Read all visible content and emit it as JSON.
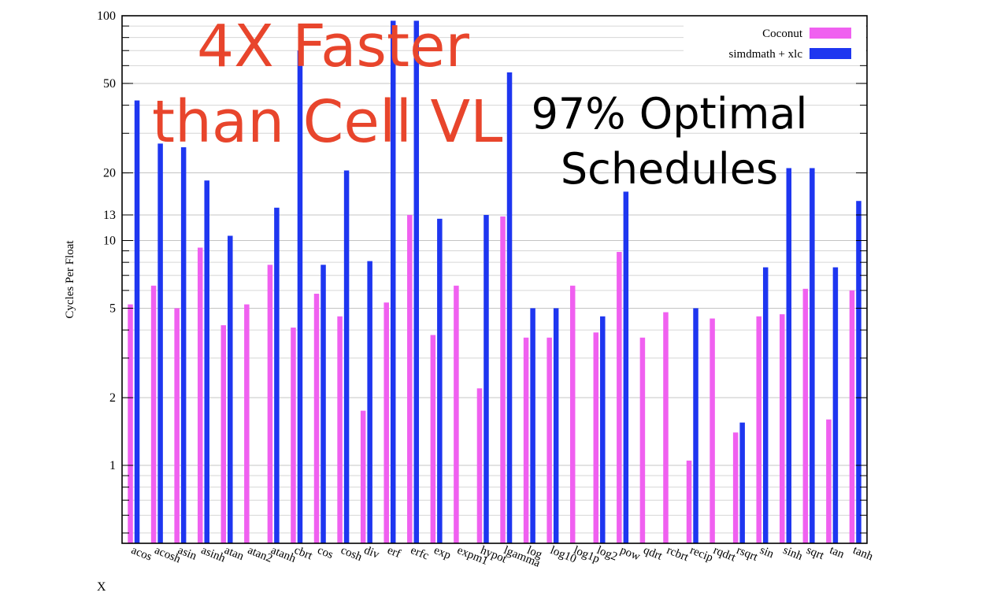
{
  "chart_data": {
    "type": "bar",
    "ylabel": "Cycles Per Float",
    "xlabel": "X",
    "yscale": "log",
    "ylim": [
      0.45,
      100
    ],
    "yticks": [
      1,
      2,
      5,
      10,
      13,
      20,
      50,
      100
    ],
    "grid": true,
    "legend_position": "top-right",
    "categories": [
      "acos",
      "acosh",
      "asin",
      "asinh",
      "atan",
      "atan2",
      "atanh",
      "cbrt",
      "cos",
      "cosh",
      "div",
      "erf",
      "erfc",
      "exp",
      "expm1",
      "hypot",
      "lgamma",
      "log",
      "log10",
      "log1p",
      "log2",
      "pow",
      "qdrt",
      "rcbrt",
      "recip",
      "rqdrt",
      "rsqrt",
      "sin",
      "sinh",
      "sqrt",
      "tan",
      "tanh"
    ],
    "series": [
      {
        "name": "Coconut",
        "color": "#f060f0",
        "values": [
          5.2,
          6.3,
          5.0,
          9.3,
          4.2,
          5.2,
          7.8,
          4.1,
          5.8,
          4.6,
          1.75,
          5.3,
          13,
          3.8,
          6.3,
          2.2,
          12.8,
          3.7,
          3.7,
          6.3,
          3.9,
          8.9,
          3.7,
          4.8,
          1.05,
          4.5,
          1.4,
          4.6,
          4.7,
          6.1,
          1.6,
          6.0
        ]
      },
      {
        "name": "simdmath + xlc",
        "color": "#1e36f0",
        "values": [
          42,
          27,
          26,
          18.5,
          10.5,
          null,
          14,
          70,
          7.8,
          20.5,
          8.1,
          95,
          95,
          12.5,
          null,
          13,
          56,
          5.0,
          5.0,
          null,
          4.6,
          16.5,
          null,
          null,
          5.0,
          null,
          1.55,
          7.6,
          21,
          21,
          7.6,
          15
        ]
      }
    ]
  },
  "overlays": {
    "headline_line1": "4X Faster",
    "headline_line2": "than Cell VL",
    "note_line1": "97% Optimal",
    "note_line2": "Schedules"
  }
}
